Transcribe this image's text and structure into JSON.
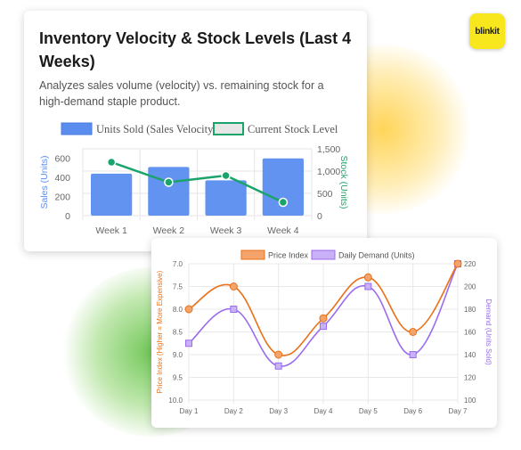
{
  "brand": {
    "logo_text": "blinkit"
  },
  "inventory": {
    "title": "Inventory Velocity & Stock Levels (Last 4 Weeks)",
    "subtitle": "Analyzes sales volume (velocity) vs. remaining stock for a high-demand staple product.",
    "chart_data": {
      "type": "bar",
      "categories": [
        "Week 1",
        "Week 2",
        "Week 3",
        "Week 4"
      ],
      "series": [
        {
          "name": "Units Sold (Sales Velocity)",
          "type": "bar",
          "axis": "left",
          "values": [
            440,
            510,
            370,
            600
          ]
        },
        {
          "name": "Current Stock Level",
          "type": "line",
          "axis": "right",
          "values": [
            1200,
            750,
            900,
            300
          ]
        }
      ],
      "ylabel": "Sales (Units)",
      "y2label": "Stock (Units)",
      "ylim": [
        0,
        700
      ],
      "yticks": [
        0,
        200,
        400,
        600
      ],
      "y2lim": [
        0,
        1500
      ],
      "y2ticks": [
        0,
        500,
        "1,000",
        "1,500"
      ],
      "legend": "top",
      "colors": {
        "bar": "#5b8def",
        "line": "#1aa36b"
      }
    }
  },
  "pricing": {
    "chart_data": {
      "type": "line",
      "categories": [
        "Day 1",
        "Day 2",
        "Day 3",
        "Day 4",
        "Day 5",
        "Day 6",
        "Day 7"
      ],
      "series": [
        {
          "name": "Price Index",
          "axis": "left",
          "values": [
            8.0,
            7.5,
            9.0,
            8.2,
            7.3,
            8.5,
            7.0
          ]
        },
        {
          "name": "Daily Demand (Units)",
          "axis": "right",
          "values": [
            150,
            180,
            130,
            165,
            200,
            140,
            220
          ]
        }
      ],
      "ylabel": "Price Index (Higher = More Expensive)",
      "y2label": "Demand (Units Sold)",
      "ylim": [
        7.0,
        10.0
      ],
      "yreversed": true,
      "yticks": [
        "7.0",
        "7.5",
        "8.0",
        "8.5",
        "9.0",
        "9.5",
        "10.0"
      ],
      "y2lim": [
        100,
        220
      ],
      "y2ticks": [
        100,
        120,
        140,
        160,
        180,
        200,
        220
      ],
      "legend": "top",
      "colors": {
        "price": "#e8711a",
        "demand": "#9a6cf0"
      }
    }
  }
}
